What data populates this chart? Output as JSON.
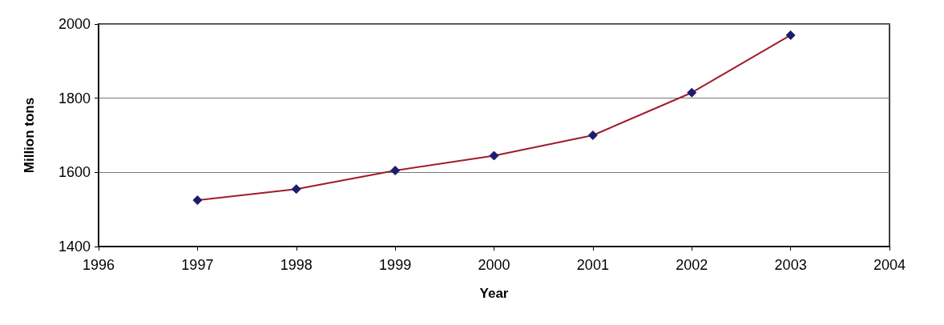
{
  "chart_data": {
    "type": "line",
    "xlabel": "Year",
    "ylabel": "Million tons",
    "x": [
      1997,
      1998,
      1999,
      2000,
      2001,
      2002,
      2003
    ],
    "series": [
      {
        "color": "#a01c2c",
        "colors": [
          "#1c1c70",
          "#1c1c70",
          "#1c1c70",
          "#1c1c70",
          "#1c1c70",
          "#1c1c70",
          "#1c1c70"
        ],
        "values": [
          1525,
          1555,
          1605,
          1645,
          1700,
          1815,
          1970
        ]
      }
    ],
    "xlim": [
      1996,
      2004
    ],
    "xticks": [
      1996,
      1997,
      1998,
      1999,
      2000,
      2001,
      2002,
      2003,
      2004
    ],
    "ylim": [
      1400,
      2000
    ],
    "yticks": [
      1400,
      1600,
      1800,
      2000
    ],
    "grid": "y",
    "marker": "diamond",
    "line_style": "solid"
  }
}
